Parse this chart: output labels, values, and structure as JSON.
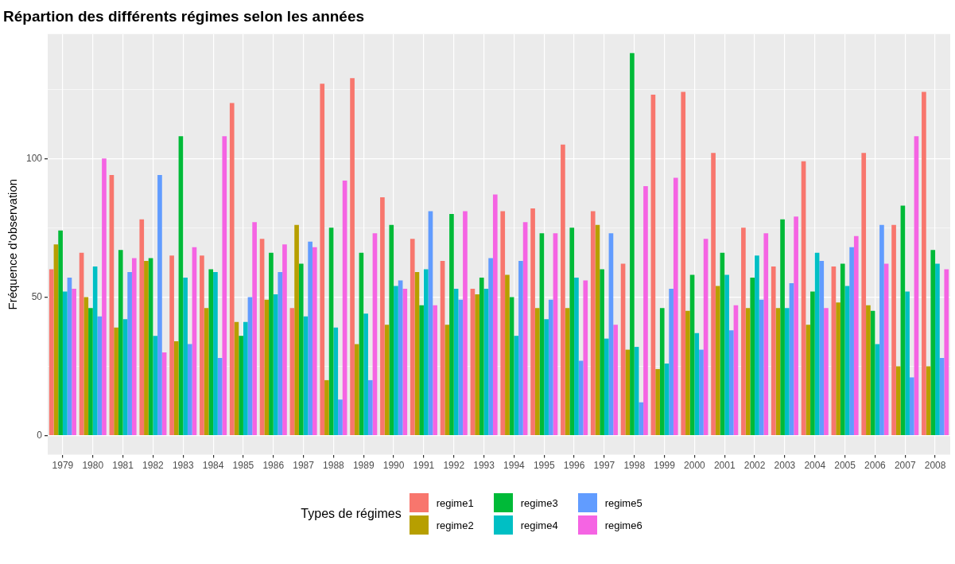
{
  "chart_data": {
    "type": "bar",
    "title": "Répartion des différents régimes selon les années",
    "ylabel": "Fréquence d'observation",
    "legend_title": "Types de régimes",
    "legend": "bottom",
    "grid": true,
    "categories": [
      "1979",
      "1980",
      "1981",
      "1982",
      "1983",
      "1984",
      "1985",
      "1986",
      "1987",
      "1988",
      "1989",
      "1990",
      "1991",
      "1992",
      "1993",
      "1994",
      "1995",
      "1996",
      "1997",
      "1998",
      "1999",
      "2000",
      "2001",
      "2002",
      "2003",
      "2004",
      "2005",
      "2006",
      "2007",
      "2008"
    ],
    "ylim": [
      -6.9,
      144.9
    ],
    "yticks": [
      {
        "value": 0,
        "label": "0"
      },
      {
        "value": 25,
        "label": null
      },
      {
        "value": 50,
        "label": "50"
      },
      {
        "value": 75,
        "label": null
      },
      {
        "value": 100,
        "label": "100"
      },
      {
        "value": 125,
        "label": null
      }
    ],
    "series": [
      {
        "name": "regime1",
        "color": "#f8766d",
        "values": [
          60,
          66,
          94,
          78,
          65,
          65,
          120,
          71,
          46,
          127,
          129,
          86,
          71,
          63,
          53,
          81,
          82,
          105,
          81,
          62,
          123,
          124,
          102,
          75,
          61,
          99,
          61,
          102,
          76,
          124
        ]
      },
      {
        "name": "regime2",
        "color": "#b79f00",
        "values": [
          69,
          50,
          39,
          63,
          34,
          46,
          41,
          49,
          76,
          20,
          33,
          40,
          59,
          40,
          51,
          58,
          46,
          46,
          76,
          31,
          24,
          45,
          54,
          46,
          46,
          40,
          48,
          47,
          25,
          25
        ]
      },
      {
        "name": "regime3",
        "color": "#00ba38",
        "values": [
          74,
          46,
          67,
          64,
          108,
          60,
          36,
          66,
          62,
          75,
          66,
          76,
          47,
          80,
          57,
          50,
          73,
          75,
          60,
          138,
          46,
          58,
          66,
          57,
          78,
          52,
          62,
          45,
          83,
          67
        ]
      },
      {
        "name": "regime4",
        "color": "#00bfc4",
        "values": [
          52,
          61,
          42,
          36,
          57,
          59,
          41,
          51,
          43,
          39,
          44,
          54,
          60,
          53,
          53,
          36,
          42,
          57,
          35,
          32,
          26,
          37,
          58,
          65,
          46,
          66,
          54,
          33,
          52,
          62
        ]
      },
      {
        "name": "regime5",
        "color": "#619cff",
        "values": [
          57,
          43,
          59,
          94,
          33,
          28,
          50,
          59,
          70,
          13,
          20,
          56,
          81,
          49,
          64,
          63,
          49,
          27,
          73,
          12,
          53,
          31,
          38,
          49,
          55,
          63,
          68,
          76,
          21,
          28
        ]
      },
      {
        "name": "regime6",
        "color": "#f564e3",
        "values": [
          53,
          100,
          64,
          30,
          68,
          108,
          77,
          69,
          68,
          92,
          73,
          53,
          47,
          81,
          87,
          77,
          73,
          56,
          40,
          90,
          93,
          71,
          47,
          73,
          79,
          46,
          72,
          62,
          108,
          60
        ]
      }
    ]
  }
}
